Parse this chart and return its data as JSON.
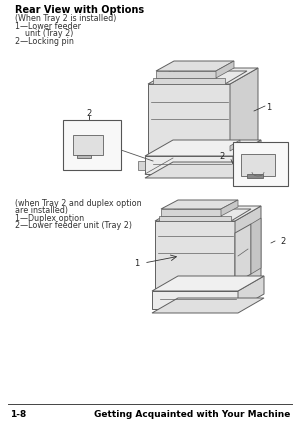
{
  "bg_color": "#ffffff",
  "title": "Rear View with Options",
  "subtitle": "(When Tray 2 is installed)",
  "label1_top_a": "1—Lower feeder",
  "label1_top_b": "    unit (Tray 2)",
  "label2_top": "2—Locking pin",
  "subtitle2_a": "(when Tray 2 and duplex option",
  "subtitle2_b": "are installed)",
  "label1_bot": "1—Duplex option",
  "label2_bot": "2—Lower feeder unit (Tray 2)",
  "footer_left": "1-8",
  "footer_right": "Getting Acquainted with Your Machine",
  "title_fontsize": 7.0,
  "body_fontsize": 5.8,
  "footer_fontsize": 6.5,
  "callout_num_top": "2",
  "label_1_top": "1",
  "label_2_top": "2",
  "label_1_bot": "1",
  "label_2_bot": "2"
}
